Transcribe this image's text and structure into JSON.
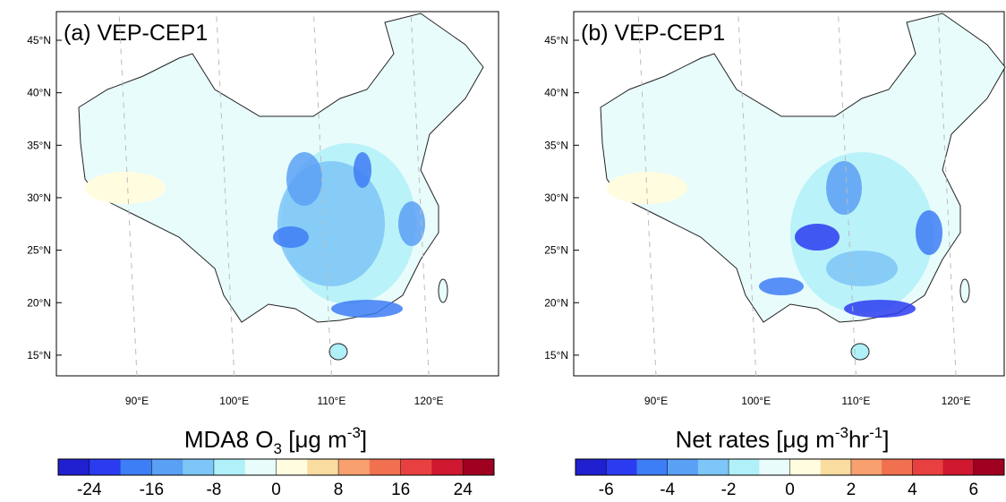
{
  "panels": [
    {
      "label": "(a) VEP-CEP1",
      "lat_ticks": [
        {
          "value": 45,
          "label": "45°N"
        },
        {
          "value": 40,
          "label": "40°N"
        },
        {
          "value": 35,
          "label": "35°N"
        },
        {
          "value": 30,
          "label": "30°N"
        },
        {
          "value": 25,
          "label": "25°N"
        },
        {
          "value": 20,
          "label": "20°N"
        },
        {
          "value": 15,
          "label": "15°N"
        }
      ],
      "lon_ticks": [
        {
          "value": 90,
          "label": "90°E"
        },
        {
          "value": 100,
          "label": "100°E"
        },
        {
          "value": 110,
          "label": "110°E"
        },
        {
          "value": 120,
          "label": "120°E"
        }
      ],
      "colorbar": {
        "title": [
          "MDA8 O",
          "3",
          " [μg m",
          "-3",
          "]"
        ],
        "colors": [
          "#2020d0",
          "#2b3cf0",
          "#3d7df5",
          "#5aa0f5",
          "#7dc6f7",
          "#b0f0f8",
          "#e8fcfc",
          "#fffce0",
          "#f8dca0",
          "#f8a070",
          "#f07050",
          "#e84040",
          "#d01830",
          "#a00020"
        ],
        "lim": [
          -28,
          28
        ],
        "ticks": [
          -24,
          -16,
          -8,
          0,
          8,
          16,
          24
        ]
      }
    },
    {
      "label": "(b) VEP-CEP1",
      "lat_ticks": [
        {
          "value": 45,
          "label": "45°N"
        },
        {
          "value": 40,
          "label": "40°N"
        },
        {
          "value": 35,
          "label": "35°N"
        },
        {
          "value": 30,
          "label": "30°N"
        },
        {
          "value": 25,
          "label": "25°N"
        },
        {
          "value": 20,
          "label": "20°N"
        },
        {
          "value": 15,
          "label": "15°N"
        }
      ],
      "lon_ticks": [
        {
          "value": 90,
          "label": "90°E"
        },
        {
          "value": 100,
          "label": "100°E"
        },
        {
          "value": 110,
          "label": "110°E"
        },
        {
          "value": 120,
          "label": "120°E"
        }
      ],
      "colorbar": {
        "title": [
          "Net rates [μg m",
          "-3",
          "hr",
          "-1",
          "]"
        ],
        "colors": [
          "#2020d0",
          "#2b3cf0",
          "#3d7df5",
          "#5aa0f5",
          "#7dc6f7",
          "#b0f0f8",
          "#e8fcfc",
          "#fffce0",
          "#f8dca0",
          "#f8a070",
          "#f07050",
          "#e84040",
          "#d01830",
          "#a00020"
        ],
        "lim": [
          -7,
          7
        ],
        "ticks": [
          -6,
          -4,
          -2,
          0,
          2,
          4,
          6
        ]
      }
    }
  ]
}
